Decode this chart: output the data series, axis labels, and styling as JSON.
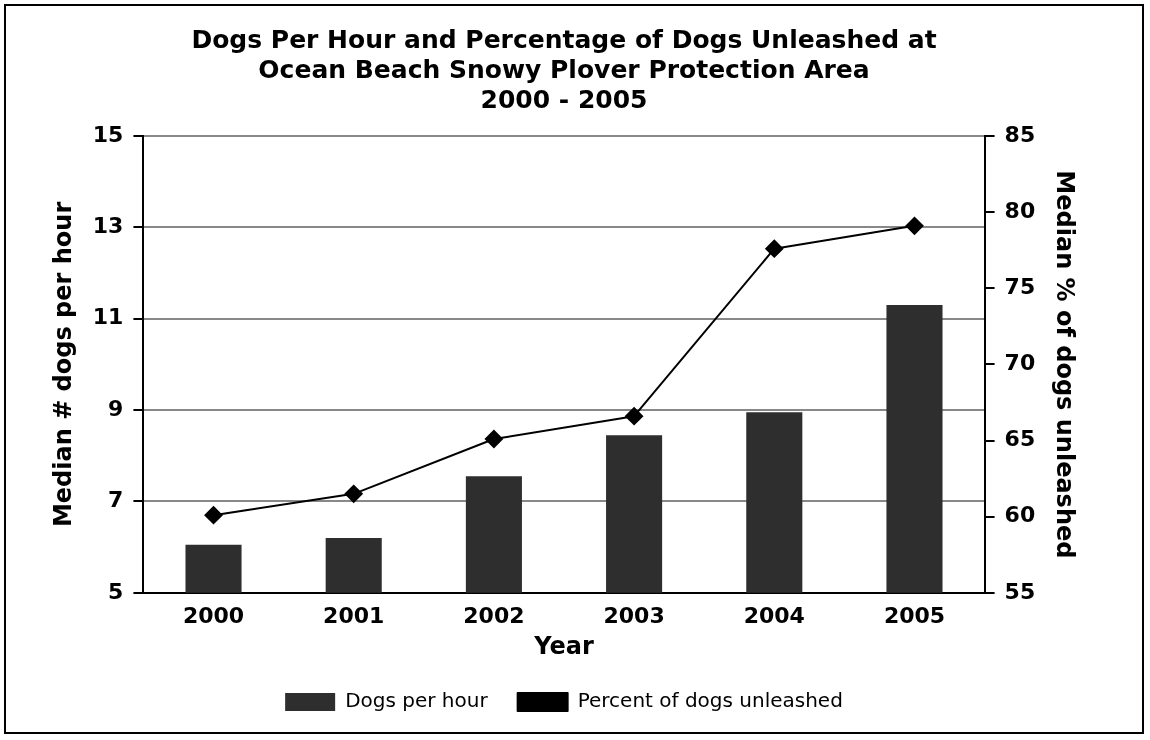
{
  "chart_data": {
    "type": "bar",
    "title": "Dogs Per Hour and Percentage of Dogs Unleashed at\nOcean Beach Snowy Plover Protection Area\n2000 - 2005",
    "xlabel": "Year",
    "ylabel": "Median # dogs per hour",
    "y2label": "Median % of dogs unleashed",
    "categories": [
      "2000",
      "2001",
      "2002",
      "2003",
      "2004",
      "2005"
    ],
    "series": [
      {
        "name": "Dogs per hour",
        "color": "#2e2e2e",
        "values": [
          6.05,
          6.2,
          7.55,
          8.45,
          8.95,
          11.3
        ]
      },
      {
        "name": "Percent of dogs unleashed",
        "type": "line",
        "axis": "y2",
        "color": "#000000",
        "marker": "diamond",
        "values": [
          60.1,
          61.5,
          65.1,
          66.6,
          77.6,
          79.1
        ]
      }
    ],
    "ylim": [
      5,
      15
    ],
    "yticks": [
      5,
      7,
      9,
      11,
      13,
      15
    ],
    "y2lim": [
      55,
      85
    ],
    "y2ticks": [
      55,
      60,
      65,
      70,
      75,
      80,
      85
    ],
    "grid": "y",
    "legend": "bottom"
  }
}
